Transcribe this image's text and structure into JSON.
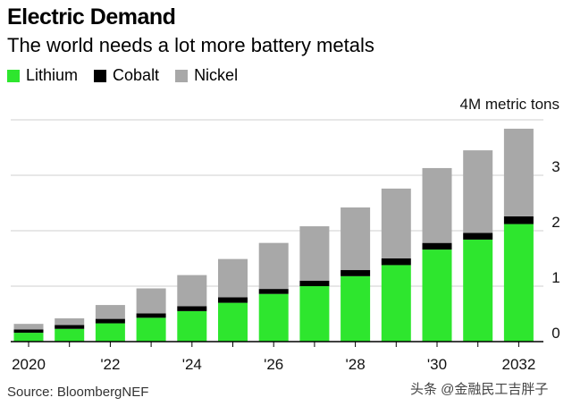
{
  "header": {
    "title": "Electric Demand",
    "subtitle": "The world needs a lot more battery metals"
  },
  "legend": [
    {
      "label": "Lithium",
      "color": "#2ee62e"
    },
    {
      "label": "Cobalt",
      "color": "#000000"
    },
    {
      "label": "Nickel",
      "color": "#a8a8a8"
    }
  ],
  "footer": {
    "source": "Source: BloombergNEF",
    "watermark": "头条 @金融民工吉胖子"
  },
  "chart_data": {
    "type": "bar",
    "stacked": true,
    "categories": [
      "2020",
      "2021",
      "2022",
      "2023",
      "2024",
      "2025",
      "2026",
      "2027",
      "2028",
      "2029",
      "2030",
      "2031",
      "2032"
    ],
    "x_tick_labels": [
      "2020",
      "",
      "'22",
      "",
      "'24",
      "",
      "'26",
      "",
      "'28",
      "",
      "'30",
      "",
      "2032"
    ],
    "series": [
      {
        "name": "Lithium",
        "color": "#2ee62e",
        "values": [
          0.16,
          0.23,
          0.33,
          0.43,
          0.55,
          0.7,
          0.86,
          1.0,
          1.18,
          1.38,
          1.66,
          1.84,
          2.12
        ]
      },
      {
        "name": "Cobalt",
        "color": "#000000",
        "values": [
          0.06,
          0.07,
          0.08,
          0.08,
          0.09,
          0.1,
          0.09,
          0.1,
          0.11,
          0.12,
          0.12,
          0.12,
          0.14
        ]
      },
      {
        "name": "Nickel",
        "color": "#a8a8a8",
        "values": [
          0.1,
          0.12,
          0.25,
          0.45,
          0.56,
          0.69,
          0.83,
          0.98,
          1.13,
          1.26,
          1.35,
          1.49,
          1.58
        ]
      }
    ],
    "y_unit_label": "4M metric tons",
    "y_tick_labels": [
      "0",
      "1",
      "2",
      "3"
    ],
    "ylim": [
      0,
      4
    ],
    "grid": true,
    "legend_position": "top-left"
  }
}
